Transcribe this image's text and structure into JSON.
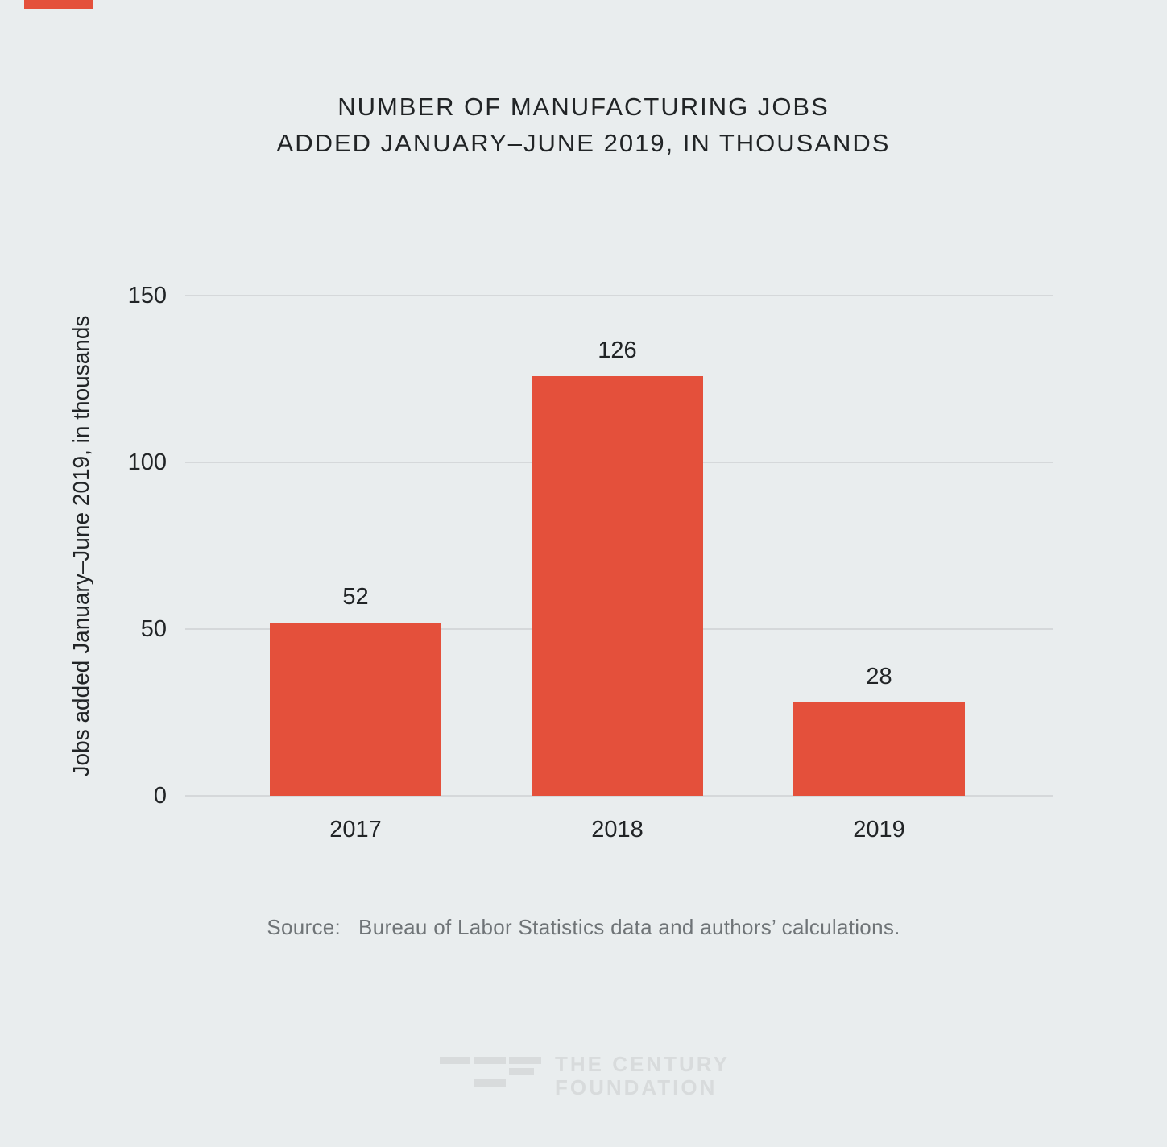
{
  "page": {
    "background": "#e9edee",
    "accent_color": "#e4503b",
    "text_color": "#212426",
    "muted_text_color": "#6f7477",
    "gridline_color": "#d5d8da"
  },
  "chart_data": {
    "type": "bar",
    "title": "NUMBER OF MANUFACTURING JOBS ADDED JANUARY–JUNE 2019, IN THOUSANDS",
    "title_lines": [
      "NUMBER OF MANUFACTURING JOBS",
      "ADDED JANUARY–JUNE 2019, IN THOUSANDS"
    ],
    "categories": [
      "2017",
      "2018",
      "2019"
    ],
    "values": [
      52,
      126,
      28
    ],
    "xlabel": "",
    "ylabel": "Jobs added January–June 2019, in thousands",
    "ylim": [
      0,
      150
    ],
    "yticks": [
      "150",
      "100",
      "50",
      "0"
    ],
    "grid": true,
    "legend": false,
    "bar_color": "#e4503b"
  },
  "source": {
    "label": "Source:",
    "text": "Bureau of Labor Statistics data and authors’ calculations."
  },
  "logo": {
    "line1": "THE CENTURY",
    "line2": "FOUNDATION",
    "mark": "tcf-dashes-mark",
    "color": "#d8dbdc"
  }
}
